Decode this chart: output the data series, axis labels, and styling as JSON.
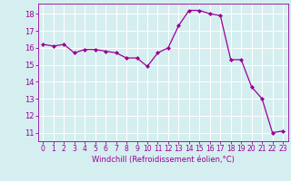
{
  "x": [
    0,
    1,
    2,
    3,
    4,
    5,
    6,
    7,
    8,
    9,
    10,
    11,
    12,
    13,
    14,
    15,
    16,
    17,
    18,
    19,
    20,
    21,
    22,
    23
  ],
  "y": [
    16.2,
    16.1,
    16.2,
    15.7,
    15.9,
    15.9,
    15.8,
    15.7,
    15.4,
    15.4,
    14.9,
    15.7,
    16.0,
    17.3,
    18.2,
    18.2,
    18.0,
    17.9,
    15.3,
    15.3,
    13.7,
    13.0,
    11.0,
    11.1
  ],
  "line_color": "#990099",
  "marker": "D",
  "marker_size": 2,
  "bg_color": "#d5eef0",
  "grid_color": "#b0d8dc",
  "xlabel": "Windchill (Refroidissement éolien,°C)",
  "xlabel_color": "#990099",
  "tick_color": "#990099",
  "ylim": [
    10.5,
    18.6
  ],
  "yticks": [
    11,
    12,
    13,
    14,
    15,
    16,
    17,
    18
  ],
  "xlim": [
    -0.5,
    23.5
  ],
  "xticks": [
    0,
    1,
    2,
    3,
    4,
    5,
    6,
    7,
    8,
    9,
    10,
    11,
    12,
    13,
    14,
    15,
    16,
    17,
    18,
    19,
    20,
    21,
    22,
    23
  ]
}
